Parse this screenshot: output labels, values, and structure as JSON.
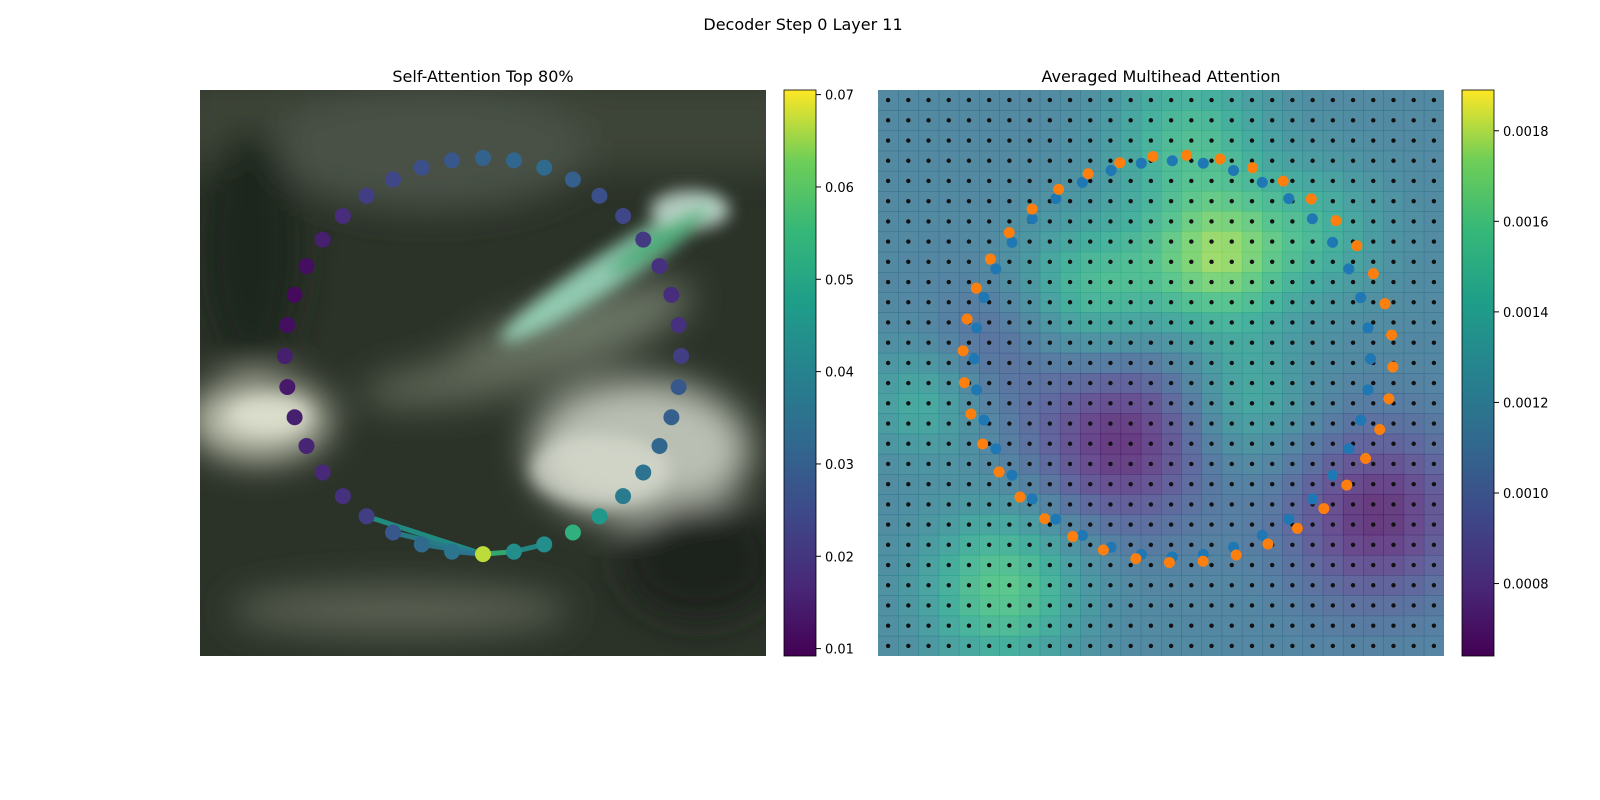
{
  "figure": {
    "title": "Decoder Step 0 Layer 11"
  },
  "chart_data": [
    {
      "type": "scatter",
      "title": "Self-Attention Top 80%",
      "background": "blurred camera image (dark green/grey foliage and pale patches)",
      "points": {
        "count": 40,
        "shape": "ring",
        "center": [
          0.5,
          0.47
        ],
        "radius": [
          0.35,
          0.35
        ],
        "values": [
          0.015,
          0.012,
          0.011,
          0.012,
          0.015,
          0.018,
          0.022,
          0.024,
          0.026,
          0.028,
          0.031,
          0.032,
          0.033,
          0.03,
          0.026,
          0.024,
          0.021,
          0.019,
          0.018,
          0.019,
          0.022,
          0.028,
          0.03,
          0.032,
          0.035,
          0.038,
          0.046,
          0.053,
          0.043,
          0.043,
          0.067,
          0.036,
          0.033,
          0.028,
          0.022,
          0.019,
          0.017,
          0.016,
          0.015,
          0.014
        ]
      },
      "edges": [
        {
          "from": 30,
          "to": 34,
          "value": 0.045
        },
        {
          "from": 30,
          "to": 33,
          "value": 0.04
        },
        {
          "from": 30,
          "to": 32,
          "value": 0.038
        },
        {
          "from": 30,
          "to": 31,
          "value": 0.036
        },
        {
          "from": 30,
          "to": 29,
          "value": 0.055
        },
        {
          "from": 29,
          "to": 28,
          "value": 0.043
        }
      ],
      "colorbar": {
        "colormap": "viridis",
        "range": [
          0.0092,
          0.0705
        ],
        "ticks": [
          "0.01",
          "0.02",
          "0.03",
          "0.04",
          "0.05",
          "0.06",
          "0.07"
        ]
      }
    },
    {
      "type": "heatmap",
      "title": "Averaged Multihead Attention",
      "grid_size": 28,
      "heatmap_blobs": [
        {
          "x": 0.55,
          "y": 0.08,
          "s": 0.1,
          "v": 0.0015
        },
        {
          "x": 0.6,
          "y": 0.3,
          "s": 0.09,
          "v": 0.0017
        },
        {
          "x": 0.38,
          "y": 0.35,
          "s": 0.09,
          "v": 0.0015
        },
        {
          "x": 0.22,
          "y": 0.88,
          "s": 0.1,
          "v": 0.0016
        },
        {
          "x": 0.65,
          "y": 0.55,
          "s": 0.08,
          "v": 0.0014
        },
        {
          "x": 0.78,
          "y": 0.25,
          "s": 0.09,
          "v": 0.0014
        },
        {
          "x": 0.08,
          "y": 0.55,
          "s": 0.07,
          "v": 0.0014
        },
        {
          "x": 0.43,
          "y": 0.62,
          "s": 0.11,
          "v": 0.0007
        },
        {
          "x": 0.88,
          "y": 0.75,
          "s": 0.11,
          "v": 0.0007
        },
        {
          "x": 0.2,
          "y": 0.45,
          "s": 0.08,
          "v": 0.001
        }
      ],
      "heatmap_base": 0.00115,
      "series": [
        {
          "name": "blue",
          "color": "#1f77b4",
          "count": 40,
          "center": [
            0.52,
            0.475
          ],
          "radius": [
            0.35,
            0.35
          ]
        },
        {
          "name": "orange",
          "color": "#ff7f0e",
          "count": 40,
          "center": [
            0.53,
            0.475
          ],
          "radius": [
            0.38,
            0.36
          ]
        }
      ],
      "colorbar": {
        "colormap": "viridis",
        "range": [
          0.00064,
          0.00189
        ],
        "ticks": [
          "0.0008",
          "0.0010",
          "0.0012",
          "0.0014",
          "0.0016",
          "0.0018"
        ]
      }
    }
  ]
}
